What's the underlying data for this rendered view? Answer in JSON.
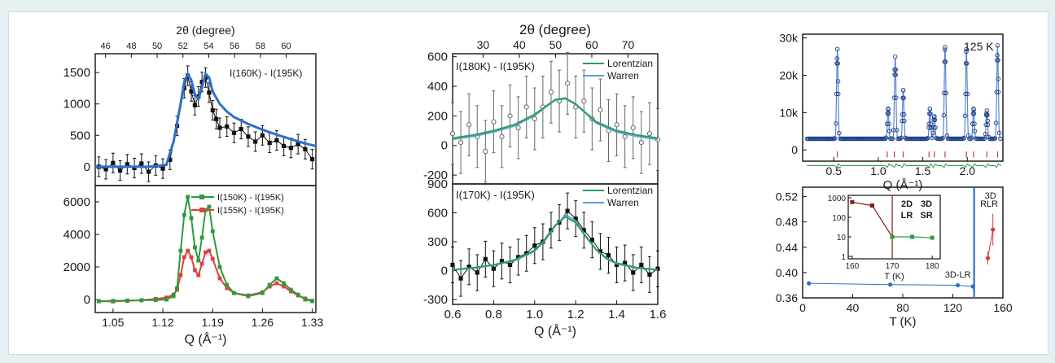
{
  "figure": {
    "background": "#e6eff2",
    "panel_background": "#ffffff"
  },
  "chart_data": [
    {
      "id": "a-top",
      "type": "scatter",
      "top_axis": {
        "label": "2θ (degree)",
        "ticks": [
          46,
          48,
          50,
          52,
          54,
          56,
          58,
          60
        ],
        "range": [
          45.2,
          62.3
        ]
      },
      "xlim": [
        1.025,
        1.335
      ],
      "ylim": [
        -300,
        1800
      ],
      "yticks": [
        0,
        500,
        1000,
        1500
      ],
      "annotation": "I(160K) - I(195K)",
      "series": [
        {
          "marker": "square",
          "color": "#111111",
          "errorbars": true,
          "x": [
            1.03,
            1.04,
            1.05,
            1.06,
            1.07,
            1.08,
            1.09,
            1.1,
            1.11,
            1.12,
            1.13,
            1.14,
            1.15,
            1.155,
            1.16,
            1.165,
            1.17,
            1.175,
            1.18,
            1.185,
            1.19,
            1.195,
            1.2,
            1.21,
            1.22,
            1.23,
            1.24,
            1.25,
            1.26,
            1.27,
            1.28,
            1.29,
            1.3,
            1.31,
            1.32,
            1.33
          ],
          "y": [
            0,
            -40,
            60,
            -60,
            40,
            -20,
            50,
            -80,
            20,
            -30,
            110,
            650,
            1250,
            1450,
            1200,
            980,
            1120,
            1350,
            1420,
            1180,
            900,
            760,
            620,
            640,
            540,
            600,
            480,
            400,
            500,
            380,
            420,
            330,
            300,
            360,
            280,
            120
          ]
        },
        {
          "type": "line",
          "color": "#2f6fc7",
          "x": [
            1.025,
            1.1,
            1.125,
            1.135,
            1.145,
            1.15,
            1.155,
            1.16,
            1.165,
            1.17,
            1.175,
            1.18,
            1.185,
            1.19,
            1.2,
            1.21,
            1.22,
            1.24,
            1.26,
            1.28,
            1.3,
            1.32,
            1.335
          ],
          "y": [
            0,
            0,
            30,
            400,
            1000,
            1350,
            1480,
            1380,
            1150,
            1080,
            1260,
            1480,
            1420,
            1200,
            1000,
            880,
            790,
            680,
            590,
            510,
            440,
            370,
            330
          ]
        }
      ]
    },
    {
      "id": "a-bottom",
      "type": "line",
      "xlim": [
        1.025,
        1.335
      ],
      "ylim": [
        -800,
        7000
      ],
      "xticks": [
        1.05,
        1.12,
        1.19,
        1.26,
        1.33
      ],
      "yticks": [
        0,
        2000,
        4000,
        6000
      ],
      "xlabel": "Q (Å⁻¹)",
      "series": [
        {
          "name": "I(150K) - I(195K)",
          "color": "#2e9a3e",
          "marker": "square",
          "x": [
            1.03,
            1.05,
            1.07,
            1.09,
            1.11,
            1.125,
            1.135,
            1.14,
            1.145,
            1.15,
            1.155,
            1.16,
            1.165,
            1.17,
            1.175,
            1.18,
            1.185,
            1.19,
            1.2,
            1.21,
            1.22,
            1.24,
            1.26,
            1.27,
            1.28,
            1.29,
            1.3,
            1.31,
            1.32,
            1.33
          ],
          "y": [
            -100,
            -80,
            -60,
            -50,
            -30,
            0,
            200,
            700,
            3000,
            5200,
            6300,
            5000,
            3200,
            2400,
            3800,
            5500,
            5700,
            4200,
            2000,
            900,
            400,
            200,
            400,
            900,
            1300,
            1000,
            600,
            300,
            0,
            -100
          ]
        },
        {
          "name": "I(155K) - I(195K)",
          "color": "#e0413e",
          "marker": "square",
          "x": [
            1.03,
            1.05,
            1.07,
            1.09,
            1.11,
            1.125,
            1.135,
            1.14,
            1.145,
            1.15,
            1.155,
            1.16,
            1.165,
            1.17,
            1.175,
            1.18,
            1.185,
            1.19,
            1.2,
            1.21,
            1.22,
            1.24,
            1.26,
            1.27,
            1.28,
            1.29,
            1.3,
            1.31,
            1.32,
            1.33
          ],
          "y": [
            -100,
            -120,
            -80,
            -40,
            40,
            120,
            300,
            600,
            1500,
            2600,
            3000,
            2600,
            1800,
            1500,
            2200,
            2900,
            3000,
            2500,
            1300,
            700,
            400,
            250,
            450,
            800,
            1000,
            800,
            500,
            250,
            60,
            -80
          ]
        }
      ]
    },
    {
      "id": "b-top",
      "type": "scatter",
      "top_axis": {
        "label": "2θ (degree)",
        "ticks": [
          30,
          40,
          50,
          60,
          70
        ],
        "range": [
          21.6,
          78.2
        ]
      },
      "xlim": [
        0.6,
        1.6
      ],
      "ylim": [
        -260,
        620
      ],
      "yticks": [
        -200,
        0,
        200,
        400,
        600
      ],
      "annotation": "I(180K) - I(195K)",
      "series": [
        {
          "name": "Lorentzian",
          "color": "#2aa05a",
          "type": "line",
          "x": [
            0.6,
            0.7,
            0.8,
            0.9,
            1.0,
            1.05,
            1.1,
            1.15,
            1.2,
            1.25,
            1.3,
            1.4,
            1.5,
            1.6
          ],
          "y": [
            50,
            70,
            100,
            140,
            210,
            260,
            310,
            320,
            280,
            220,
            160,
            100,
            70,
            50
          ]
        },
        {
          "name": "Warren",
          "color": "#5b9bd5",
          "type": "line",
          "x": [
            0.6,
            0.7,
            0.8,
            0.9,
            1.0,
            1.05,
            1.1,
            1.15,
            1.2,
            1.25,
            1.3,
            1.4,
            1.5,
            1.6
          ],
          "y": [
            40,
            60,
            90,
            130,
            200,
            255,
            305,
            315,
            275,
            215,
            150,
            90,
            60,
            40
          ]
        },
        {
          "name": "data",
          "color": "#666666",
          "marker": "circle-open",
          "errorbars": true,
          "x": [
            0.6,
            0.64,
            0.68,
            0.72,
            0.76,
            0.8,
            0.84,
            0.88,
            0.92,
            0.96,
            1.0,
            1.04,
            1.08,
            1.12,
            1.16,
            1.2,
            1.24,
            1.28,
            1.32,
            1.36,
            1.4,
            1.44,
            1.48,
            1.52,
            1.56,
            1.6
          ],
          "y": [
            80,
            20,
            140,
            60,
            -40,
            160,
            60,
            200,
            120,
            260,
            180,
            260,
            360,
            300,
            420,
            260,
            300,
            180,
            240,
            100,
            140,
            60,
            120,
            20,
            80,
            40
          ]
        }
      ]
    },
    {
      "id": "b-bottom",
      "type": "scatter",
      "xlim": [
        0.6,
        1.6
      ],
      "ylim": [
        -350,
        900
      ],
      "xticks": [
        0.6,
        0.8,
        1.0,
        1.2,
        1.4,
        1.6
      ],
      "xtick_labels": [
        "0.6",
        "0.8",
        "1.0",
        "1.2",
        "1.4",
        "1.6"
      ],
      "yticks": [
        -300,
        0,
        300,
        600,
        900
      ],
      "xlabel": "Q (Å⁻¹)",
      "annotation": "I(170K) - I(195K)",
      "series": [
        {
          "name": "Lorentzian",
          "color": "#2aa05a",
          "type": "line",
          "x": [
            0.6,
            0.7,
            0.8,
            0.9,
            1.0,
            1.05,
            1.1,
            1.15,
            1.2,
            1.25,
            1.3,
            1.35,
            1.4,
            1.5,
            1.6
          ],
          "y": [
            10,
            30,
            60,
            110,
            210,
            320,
            470,
            560,
            500,
            350,
            220,
            130,
            80,
            30,
            10
          ]
        },
        {
          "name": "Warren",
          "color": "#5b9bd5",
          "type": "line",
          "x": [
            0.6,
            0.7,
            0.8,
            0.9,
            1.0,
            1.05,
            1.1,
            1.15,
            1.2,
            1.25,
            1.3,
            1.35,
            1.4,
            1.5,
            1.6
          ],
          "y": [
            5,
            25,
            55,
            100,
            200,
            310,
            460,
            580,
            520,
            360,
            215,
            120,
            70,
            25,
            5
          ]
        },
        {
          "name": "data",
          "color": "#111111",
          "marker": "square",
          "errorbars": true,
          "x": [
            0.6,
            0.64,
            0.68,
            0.72,
            0.76,
            0.8,
            0.84,
            0.88,
            0.92,
            0.96,
            1.0,
            1.04,
            1.08,
            1.12,
            1.16,
            1.2,
            1.24,
            1.28,
            1.32,
            1.36,
            1.4,
            1.44,
            1.48,
            1.52,
            1.56,
            1.6
          ],
          "y": [
            60,
            -80,
            40,
            -20,
            120,
            20,
            100,
            60,
            140,
            180,
            260,
            300,
            420,
            500,
            620,
            540,
            420,
            320,
            200,
            160,
            60,
            80,
            -20,
            60,
            -40,
            20
          ]
        }
      ]
    },
    {
      "id": "c-top",
      "type": "scatter",
      "xlim": [
        0.15,
        2.4
      ],
      "ylim": [
        -3000,
        31000
      ],
      "xticks": [
        0.5,
        1.0,
        1.5,
        2.0
      ],
      "xtick_labels": [
        "0.5",
        "1.0",
        "1.5",
        "2.0"
      ],
      "yticks": [
        0,
        10000,
        20000,
        30000
      ],
      "ytick_labels": [
        "0",
        "10k",
        "20k",
        "30k"
      ],
      "xlabel": "Q (Å⁻¹)",
      "annotation": "125 K",
      "peaks": [
        {
          "q": 0.54,
          "h": 24000
        },
        {
          "q": 1.11,
          "h": 8000
        },
        {
          "q": 1.19,
          "h": 22000
        },
        {
          "q": 1.28,
          "h": 13000
        },
        {
          "q": 1.58,
          "h": 8000
        },
        {
          "q": 1.63,
          "h": 6000
        },
        {
          "q": 1.75,
          "h": 24500
        },
        {
          "q": 1.99,
          "h": 24000
        },
        {
          "q": 2.07,
          "h": 8000
        },
        {
          "q": 2.22,
          "h": 7500
        },
        {
          "q": 2.34,
          "h": 25000
        }
      ],
      "background_level": 3000,
      "tick_marks": [
        0.54,
        1.1,
        1.18,
        1.28,
        1.57,
        1.63,
        1.75,
        1.99,
        2.07,
        2.22,
        2.34
      ],
      "series_colors": {
        "data": "#1f3c8a",
        "fit": "#5a86c8",
        "difference": "#2e9a3e",
        "ticks": "#d23a3a"
      }
    },
    {
      "id": "c-bottom",
      "type": "line",
      "xlim": [
        0,
        160
      ],
      "ylim": [
        0.36,
        0.535
      ],
      "xticks": [
        0,
        40,
        80,
        120,
        160
      ],
      "yticks": [
        0.36,
        0.4,
        0.44,
        0.48,
        0.52
      ],
      "ytick_labels": [
        "0.36",
        "0.40",
        "0.44",
        "0.48",
        "0.52"
      ],
      "xlabel": "T (K)",
      "vline": {
        "x": 137,
        "color": "#2f6fc7"
      },
      "labels": [
        {
          "text": "3D-LR",
          "x": 124,
          "y": 0.392,
          "color": "#2f6fc7"
        },
        {
          "text": "3D",
          "x": 150,
          "y": 0.517,
          "color": "#d23a3a"
        },
        {
          "text": "RLR",
          "x": 149,
          "y": 0.504,
          "color": "#d23a3a"
        }
      ],
      "series": [
        {
          "name": "3D-LR",
          "color": "#2f6fc7",
          "x": [
            5,
            70,
            124,
            136
          ],
          "y": [
            0.383,
            0.381,
            0.38,
            0.378
          ]
        },
        {
          "name": "3D RLR",
          "color": "#d23a3a",
          "x": [
            148,
            152
          ],
          "y": [
            0.423,
            0.468
          ],
          "errorbars": [
            0.01,
            0.025
          ]
        }
      ],
      "inset": {
        "xlim": [
          159,
          182
        ],
        "ylim_log": [
          1,
          1000
        ],
        "xticks": [
          160,
          170,
          180
        ],
        "yticks": [
          1,
          10,
          100,
          1000
        ],
        "ytick_labels": [
          "1",
          "10",
          "100",
          "1000"
        ],
        "xlabel": "T (K)",
        "labels": [
          {
            "text": "2D",
            "color": "#8b1a1a"
          },
          {
            "text": "LR",
            "color": "#8b1a1a"
          },
          {
            "text": "3D",
            "color": "#2e9a3e"
          },
          {
            "text": "SR",
            "color": "#2e9a3e"
          }
        ],
        "series": [
          {
            "name": "2D LR",
            "color": "#8b1a1a",
            "x": [
              160,
              165,
              170
            ],
            "y": [
              600,
              400,
              10
            ]
          },
          {
            "name": "3D SR",
            "color": "#2e9a3e",
            "x": [
              170,
              175,
              180
            ],
            "y": [
              10,
              10,
              9
            ]
          }
        ],
        "vline": {
          "x": 170,
          "color": "#8b1a1a"
        }
      }
    }
  ]
}
